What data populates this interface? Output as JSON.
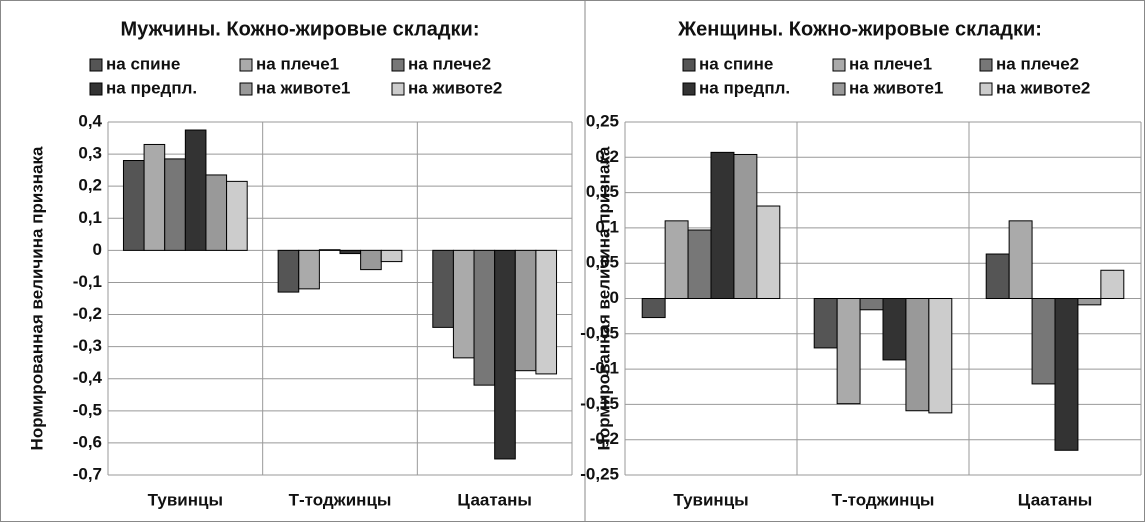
{
  "chart_data": [
    {
      "type": "bar",
      "title": "Мужчины. Кожно-жировые складки:",
      "ylabel": "Нормированная величина признака",
      "categories": [
        "Тувинцы",
        "Т-тоджинцы",
        "Цаатаны"
      ],
      "series": [
        {
          "name": "на спине",
          "color": "#555555",
          "values": [
            0.28,
            -0.13,
            -0.24
          ]
        },
        {
          "name": "на плече1",
          "color": "#aaaaaa",
          "values": [
            0.33,
            -0.12,
            -0.335
          ]
        },
        {
          "name": "на плече2",
          "color": "#777777",
          "values": [
            0.285,
            0.002,
            -0.42
          ]
        },
        {
          "name": "на предпл.",
          "color": "#333333",
          "values": [
            0.375,
            -0.01,
            -0.65
          ]
        },
        {
          "name": "на животе1",
          "color": "#999999",
          "values": [
            0.235,
            -0.06,
            -0.375
          ]
        },
        {
          "name": "на животе2",
          "color": "#cccccc",
          "values": [
            0.215,
            -0.035,
            -0.385
          ]
        }
      ],
      "ylim": [
        -0.7,
        0.4
      ],
      "yticks": [
        {
          "value": 0.4,
          "label": "0,4"
        },
        {
          "value": 0.3,
          "label": "0,3"
        },
        {
          "value": 0.2,
          "label": "0,2"
        },
        {
          "value": 0.1,
          "label": "0,1"
        },
        0,
        {
          "value": -0.1,
          "label": "-0,1"
        },
        {
          "value": -0.2,
          "label": "-0,2"
        },
        {
          "value": -0.3,
          "label": "-0,3"
        },
        {
          "value": -0.4,
          "label": "-0,4"
        },
        {
          "value": -0.5,
          "label": "-0,5"
        },
        {
          "value": -0.6,
          "label": "-0,6"
        },
        {
          "value": -0.7,
          "label": "-0,7"
        }
      ],
      "grid": true
    },
    {
      "type": "bar",
      "title": "Женщины. Кожно-жировые складки:",
      "ylabel": "Нормированная величина признака",
      "categories": [
        "Тувинцы",
        "Т-тоджинцы",
        "Цаатаны"
      ],
      "series": [
        {
          "name": "на спине",
          "color": "#555555",
          "values": [
            -0.027,
            -0.07,
            0.063
          ]
        },
        {
          "name": "на плече1",
          "color": "#aaaaaa",
          "values": [
            0.11,
            -0.149,
            0.11
          ]
        },
        {
          "name": "на плече2",
          "color": "#777777",
          "values": [
            0.097,
            -0.016,
            -0.121
          ]
        },
        {
          "name": "на предпл.",
          "color": "#333333",
          "values": [
            0.207,
            -0.087,
            -0.215
          ]
        },
        {
          "name": "на животе1",
          "color": "#999999",
          "values": [
            0.204,
            -0.159,
            -0.009
          ]
        },
        {
          "name": "на животе2",
          "color": "#cccccc",
          "values": [
            0.131,
            -0.162,
            0.04
          ]
        }
      ],
      "ylim": [
        -0.25,
        0.25
      ],
      "yticks": [
        {
          "value": 0.25,
          "label": "0,25"
        },
        {
          "value": 0.2,
          "label": "0,2"
        },
        {
          "value": 0.15,
          "label": "0,15"
        },
        {
          "value": 0.1,
          "label": "0,1"
        },
        {
          "value": 0.05,
          "label": "0,05"
        },
        0,
        {
          "value": -0.05,
          "label": "-0,05"
        },
        {
          "value": -0.1,
          "label": "-0,1"
        },
        {
          "value": -0.15,
          "label": "-0,15"
        },
        {
          "value": -0.2,
          "label": "-0,2"
        },
        {
          "value": -0.25,
          "label": "-0,25"
        }
      ],
      "grid": true
    }
  ]
}
